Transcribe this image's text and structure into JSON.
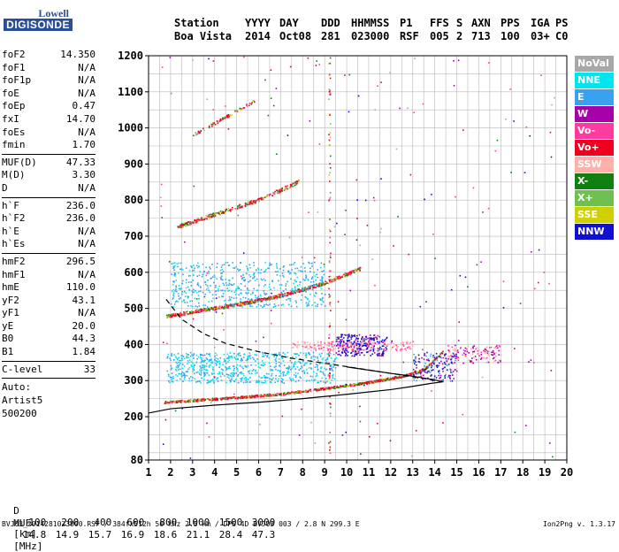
{
  "logo": {
    "line1": "Lowell",
    "line2": "DIGISONDE"
  },
  "header": {
    "row1": {
      "station": "Station",
      "yyyy": "YYYY",
      "day": "DAY",
      "ddd": "DDD",
      "hhmmss": "HHMMSS",
      "p1": "P1",
      "ffs": "FFS",
      "s": "S",
      "axn": "AXN",
      "pps": "PPS",
      "iga": "IGA",
      "ps": "PS"
    },
    "row2": {
      "station": "Boa Vista",
      "yyyy": "2014",
      "day": "Oct08",
      "ddd": "281",
      "hhmmss": "023000",
      "p1": "RSF",
      "ffs": "005",
      "s": "2",
      "axn": "713",
      "pps": "100",
      "iga": "03+",
      "ps": "C0"
    }
  },
  "params": [
    {
      "name": "foF2",
      "value": "14.350"
    },
    {
      "name": "foF1",
      "value": "N/A"
    },
    {
      "name": "foF1p",
      "value": "N/A"
    },
    {
      "name": "foE",
      "value": "N/A"
    },
    {
      "name": "foEp",
      "value": "0.47"
    },
    {
      "name": "fxI",
      "value": "14.70"
    },
    {
      "name": "foEs",
      "value": "N/A"
    },
    {
      "name": "fmin",
      "value": "1.70"
    },
    {
      "sep": true
    },
    {
      "name": "MUF(D)",
      "value": "47.33"
    },
    {
      "name": "M(D)",
      "value": "3.30"
    },
    {
      "name": "D",
      "value": "N/A"
    },
    {
      "sep": true
    },
    {
      "name": "h`F",
      "value": "236.0"
    },
    {
      "name": "h`F2",
      "value": "236.0"
    },
    {
      "name": "h`E",
      "value": "N/A"
    },
    {
      "name": "h`Es",
      "value": "N/A"
    },
    {
      "sep": true
    },
    {
      "name": "hmF2",
      "value": "296.5"
    },
    {
      "name": "hmF1",
      "value": "N/A"
    },
    {
      "name": "hmE",
      "value": "110.0"
    },
    {
      "name": "yF2",
      "value": "43.1"
    },
    {
      "name": "yF1",
      "value": "N/A"
    },
    {
      "name": "yE",
      "value": "20.0"
    },
    {
      "name": "B0",
      "value": "44.3"
    },
    {
      "name": "B1",
      "value": "1.84"
    },
    {
      "sep": true
    },
    {
      "name": "C-level",
      "value": "33"
    },
    {
      "sep": true
    }
  ],
  "auto": {
    "line1": "Auto:",
    "line2": "Artist5",
    "line3": "500200"
  },
  "legend": [
    {
      "label": "NoVal",
      "color": "#a8a8a8"
    },
    {
      "label": "NNE",
      "color": "#00e5ee"
    },
    {
      "label": "E",
      "color": "#3aa0f0"
    },
    {
      "label": "W",
      "color": "#a800a8"
    },
    {
      "label": "Vo-",
      "color": "#ff3aa0"
    },
    {
      "label": "Vo+",
      "color": "#ee0020"
    },
    {
      "label": "SSW",
      "color": "#ffb0a8"
    },
    {
      "label": "X-",
      "color": "#108010"
    },
    {
      "label": "X+",
      "color": "#70c050"
    },
    {
      "label": "SSE",
      "color": "#d0d000"
    },
    {
      "label": "NNW",
      "color": "#1010d0"
    }
  ],
  "muf_table": {
    "d_label": "D",
    "d_values": [
      "100",
      "200",
      "400",
      "600",
      "800",
      "1000",
      "1500",
      "3000"
    ],
    "d_unit": "[km]",
    "muf_label": "MUF",
    "muf_values": [
      "14.8",
      "14.9",
      "15.7",
      "16.9",
      "18.6",
      "21.1",
      "28.4",
      "47.3"
    ],
    "muf_unit": "[MHz]"
  },
  "footer": {
    "left": "BVJ03_2014281023000.RSF / 384fx512h 50 kHz 2.5 km / DPS-4D BVJ03 003 / 2.8 N 299.3 E",
    "right": "Ion2Png v. 1.3.17"
  },
  "chart_data": {
    "type": "scatter",
    "xlim": [
      1,
      20
    ],
    "ylim": [
      80,
      1200
    ],
    "xticks": [
      1,
      2,
      3,
      4,
      5,
      6,
      7,
      8,
      9,
      10,
      11,
      12,
      13,
      14,
      15,
      16,
      17,
      18,
      19,
      20
    ],
    "yticks": [
      80,
      200,
      300,
      400,
      500,
      600,
      700,
      800,
      900,
      1000,
      1100,
      1200
    ],
    "grid": true,
    "legend_position": "right",
    "traces": [
      {
        "name": "O-trace F2 (1st hop)",
        "color": "#ee0020",
        "x": [
          1.7,
          3,
          5,
          7,
          9,
          11,
          12.5,
          13.5,
          14.35
        ],
        "y": [
          240,
          245,
          253,
          263,
          278,
          295,
          312,
          330,
          380
        ]
      },
      {
        "name": "O-trace F2 (2nd hop)",
        "color": "#ee0020",
        "x": [
          1.8,
          3,
          5,
          7,
          9,
          10.6
        ],
        "y": [
          478,
          490,
          510,
          535,
          570,
          610
        ]
      },
      {
        "name": "O-trace F2 (3rd hop)",
        "color": "#ee0020",
        "x": [
          2.3,
          4,
          6,
          7.8
        ],
        "y": [
          725,
          760,
          800,
          850
        ]
      },
      {
        "name": "O-trace F2 (4th hop)",
        "color": "#ee0020",
        "x": [
          3,
          4.5,
          5.8
        ],
        "y": [
          980,
          1030,
          1075
        ]
      }
    ],
    "profile_solid": {
      "x": [
        1,
        2,
        4,
        6,
        8,
        10,
        12,
        13,
        13.8,
        14.35,
        14,
        13,
        12,
        10
      ],
      "y": [
        210,
        222,
        232,
        240,
        250,
        262,
        275,
        284,
        292,
        296.5,
        302,
        312,
        320,
        338
      ]
    },
    "profile_dashed": {
      "x": [
        1.8,
        2.5,
        3.5,
        4.5,
        6,
        7.5,
        9,
        10.5,
        12,
        13.3,
        14.4
      ],
      "y": [
        525,
        470,
        430,
        403,
        380,
        362,
        348,
        334,
        320,
        308,
        296.5
      ]
    }
  }
}
